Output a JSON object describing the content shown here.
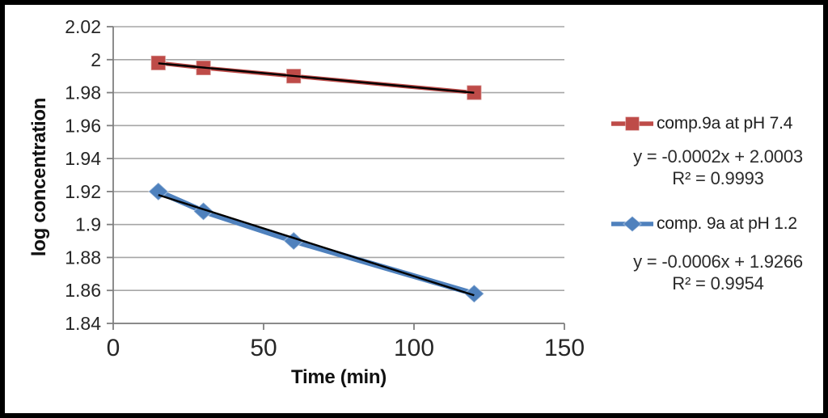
{
  "chart_data": {
    "type": "line",
    "title": "",
    "xlabel": "Time (min)",
    "ylabel": "log concentration",
    "xlim": [
      0,
      150
    ],
    "ylim": [
      1.84,
      2.02
    ],
    "grid": "horizontal",
    "legend_position": "right",
    "x": [
      15,
      30,
      60,
      120
    ],
    "x_ticks": [
      {
        "value": 0,
        "label": "0"
      },
      {
        "value": 50,
        "label": "50"
      },
      {
        "value": 100,
        "label": "100"
      },
      {
        "value": 150,
        "label": "150"
      }
    ],
    "y_ticks": [
      {
        "value": 2.02,
        "label": "2.02"
      },
      {
        "value": 2.0,
        "label": "2"
      },
      {
        "value": 1.98,
        "label": "1.98"
      },
      {
        "value": 1.96,
        "label": "1.96"
      },
      {
        "value": 1.94,
        "label": "1.94"
      },
      {
        "value": 1.92,
        "label": "1.92"
      },
      {
        "value": 1.9,
        "label": "1.9"
      },
      {
        "value": 1.88,
        "label": "1.88"
      },
      {
        "value": 1.86,
        "label": "1.86"
      },
      {
        "value": 1.84,
        "label": "1.84"
      }
    ],
    "series": [
      {
        "name": "comp.9a at pH 7.4",
        "color": "#BE4B48",
        "marker": "square",
        "values": [
          1.998,
          1.995,
          1.99,
          1.98
        ],
        "trendline_color": "#000000",
        "equation": "y = -0.0002x + 2.0003",
        "r_squared": "R² = 0.9993"
      },
      {
        "name": "comp. 9a at pH 1.2",
        "color": "#4F81BD",
        "marker": "diamond",
        "values": [
          1.92,
          1.908,
          1.89,
          1.858
        ],
        "trendline_color": "#000000",
        "equation": "y = -0.0006x + 1.9266",
        "r_squared": "R² = 0.9954"
      }
    ],
    "colors": {
      "gridline": "#A6A6A6",
      "axis": "#7F7F7F",
      "tick_label": "#262626",
      "frame_border": "#000000",
      "background": "#FFFFFF"
    }
  }
}
